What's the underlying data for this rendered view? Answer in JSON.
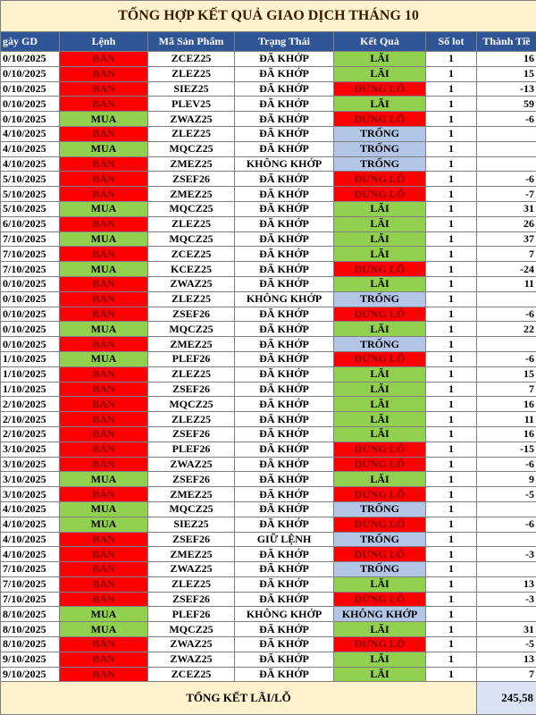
{
  "title": "TỔNG HỢP KẾT QUẢ GIAO DỊCH THÁNG 10",
  "table": {
    "headers": [
      "gày GD",
      "Lệnh",
      "Mã Sản Phẩm",
      "Trạng Thái",
      "Kết Quả",
      "Số lot",
      "Thành Tiề"
    ],
    "rows": [
      [
        "0/10/2025",
        "BÁN",
        "ZCEZ25",
        "ĐÃ KHỚP",
        "LÃI",
        "1",
        "16"
      ],
      [
        "0/10/2025",
        "BÁN",
        "ZLEZ25",
        "ĐÃ KHỚP",
        "LÃI",
        "1",
        "15"
      ],
      [
        "0/10/2025",
        "BÁN",
        "SIEZ25",
        "ĐÃ KHỚP",
        "DỪNG LỖ",
        "1",
        "-13"
      ],
      [
        "0/10/2025",
        "BÁN",
        "PLEV25",
        "ĐÃ KHỚP",
        "LÃI",
        "1",
        "59"
      ],
      [
        "0/10/2025",
        "MUA",
        "ZWAZ25",
        "ĐÃ KHỚP",
        "DỪNG LỖ",
        "1",
        "-6"
      ],
      [
        "4/10/2025",
        "BÁN",
        "ZLEZ25",
        "ĐÃ KHỚP",
        "TRỐNG",
        "1",
        null
      ],
      [
        "4/10/2025",
        "MUA",
        "MQCZ25",
        "ĐÃ KHỚP",
        "TRỐNG",
        "1",
        null
      ],
      [
        "4/10/2025",
        "BÁN",
        "ZMEZ25",
        "KHÔNG KHỚP",
        "TRỐNG",
        "1",
        null
      ],
      [
        "5/10/2025",
        "BÁN",
        "ZSEF26",
        "ĐÃ KHỚP",
        "DỪNG LỖ",
        "1",
        "-6"
      ],
      [
        "5/10/2025",
        "BÁN",
        "ZMEZ25",
        "ĐÃ KHỚP",
        "DỪNG LỖ",
        "1",
        "-7"
      ],
      [
        "5/10/2025",
        "MUA",
        "MQCZ25",
        "ĐÃ KHỚP",
        "LÃI",
        "1",
        "31"
      ],
      [
        "6/10/2025",
        "BÁN",
        "ZLEZ25",
        "ĐÃ KHỚP",
        "LÃI",
        "1",
        "26"
      ],
      [
        "7/10/2025",
        "MUA",
        "MQCZ25",
        "ĐÃ KHỚP",
        "LÃI",
        "1",
        "37"
      ],
      [
        "7/10/2025",
        "BÁN",
        "ZCEZ25",
        "ĐÃ KHỚP",
        "LÃI",
        "1",
        "7"
      ],
      [
        "7/10/2025",
        "MUA",
        "KCEZ25",
        "ĐÃ KHỚP",
        "DỪNG LỖ",
        "1",
        "-24"
      ],
      [
        "0/10/2025",
        "BÁN",
        "ZWAZ25",
        "ĐÃ KHỚP",
        "LÃI",
        "1",
        "11"
      ],
      [
        "0/10/2025",
        "BÁN",
        "ZLEZ25",
        "KHÔNG KHỚP",
        "TRỐNG",
        "1",
        null
      ],
      [
        "0/10/2025",
        "BÁN",
        "ZSEF26",
        "ĐÃ KHỚP",
        "DỪNG LỖ",
        "1",
        "-6"
      ],
      [
        "0/10/2025",
        "MUA",
        "MQCZ25",
        "ĐÃ KHỚP",
        "LÃI",
        "1",
        "22"
      ],
      [
        "0/10/2025",
        "BÁN",
        "ZMEZ25",
        "ĐÃ KHỚP",
        "TRỐNG",
        "1",
        null
      ],
      [
        "1/10/2025",
        "MUA",
        "PLEF26",
        "ĐÃ KHỚP",
        "DỪNG LỖ",
        "1",
        "-6"
      ],
      [
        "1/10/2025",
        "BÁN",
        "ZLEZ25",
        "ĐÃ KHỚP",
        "LÃI",
        "1",
        "15"
      ],
      [
        "1/10/2025",
        "BÁN",
        "ZSEF26",
        "ĐÃ KHỚP",
        "LÃI",
        "1",
        "7"
      ],
      [
        "2/10/2025",
        "BÁN",
        "MQCZ25",
        "ĐÃ KHỚP",
        "LÃI",
        "1",
        "16"
      ],
      [
        "2/10/2025",
        "BÁN",
        "ZLEZ25",
        "ĐÃ KHỚP",
        "LÃI",
        "1",
        "11"
      ],
      [
        "2/10/2025",
        "BÁN",
        "ZSEF26",
        "ĐÃ KHỚP",
        "LÃI",
        "1",
        "16"
      ],
      [
        "3/10/2025",
        "BÁN",
        "PLEF26",
        "ĐÃ KHỚP",
        "DỪNG LỖ",
        "1",
        "-15"
      ],
      [
        "3/10/2025",
        "BÁN",
        "ZWAZ25",
        "ĐÃ KHỚP",
        "DỪNG LỖ",
        "1",
        "-6"
      ],
      [
        "3/10/2025",
        "MUA",
        "ZSEF26",
        "ĐÃ KHỚP",
        "LÃI",
        "1",
        "9"
      ],
      [
        "3/10/2025",
        "BÁN",
        "ZMEZ25",
        "ĐÃ KHỚP",
        "DỪNG LỖ",
        "1",
        "-5"
      ],
      [
        "4/10/2025",
        "MUA",
        "MQCZ25",
        "ĐÃ KHỚP",
        "TRỐNG",
        "1",
        null
      ],
      [
        "4/10/2025",
        "MUA",
        "SIEZ25",
        "ĐÃ KHỚP",
        "DỪNG LỖ",
        "1",
        "-6"
      ],
      [
        "4/10/2025",
        "BÁN",
        "ZSEF26",
        "GIỮ LỆNH",
        "TRỐNG",
        "1",
        null
      ],
      [
        "4/10/2025",
        "BÁN",
        "ZMEZ25",
        "ĐÃ KHỚP",
        "DỪNG LỖ",
        "1",
        "-3"
      ],
      [
        "7/10/2025",
        "BÁN",
        "ZWAZ25",
        "ĐÃ KHỚP",
        "TRỐNG",
        "1",
        null
      ],
      [
        "7/10/2025",
        "BÁN",
        "ZLEZ25",
        "ĐÃ KHỚP",
        "LÃI",
        "1",
        "13"
      ],
      [
        "7/10/2025",
        "BÁN",
        "ZSEF26",
        "ĐÃ KHỚP",
        "DỪNG LỖ",
        "1",
        "-3"
      ],
      [
        "8/10/2025",
        "MUA",
        "PLEF26",
        "KHÔNG KHỚP",
        "KHÔNG KHỚP",
        "1",
        null
      ],
      [
        "8/10/2025",
        "MUA",
        "MQCZ25",
        "ĐÃ KHỚP",
        "LÃI",
        "1",
        "31"
      ],
      [
        "8/10/2025",
        "BÁN",
        "ZWAZ25",
        "ĐÃ KHỚP",
        "DỪNG LỖ",
        "1",
        "-5"
      ],
      [
        "9/10/2025",
        "BÁN",
        "ZWAZ25",
        "ĐÃ KHỚP",
        "LÃI",
        "1",
        "13"
      ],
      [
        "9/10/2025",
        "BÁN",
        "ZCEZ25",
        "ĐÃ KHỚP",
        "LÃI",
        "1",
        "7"
      ]
    ],
    "colored_columns": [
      1,
      4
    ],
    "cell_colors": {
      "BÁN": "#ff0000",
      "MUA": "#92d050",
      "LÃI": "#92d050",
      "DỪNG LỖ": "#ff0000",
      "TRỐNG": "#b4c6e7",
      "KHÔNG KHỚP": "#b4c6e7"
    },
    "cell_text_colors": {
      "BÁN": "#7f0000",
      "DỪNG LỖ": "#7f0000"
    }
  },
  "footer": {
    "label": "TỔNG KẾT LÃI/LỖ",
    "total": "245,58"
  }
}
